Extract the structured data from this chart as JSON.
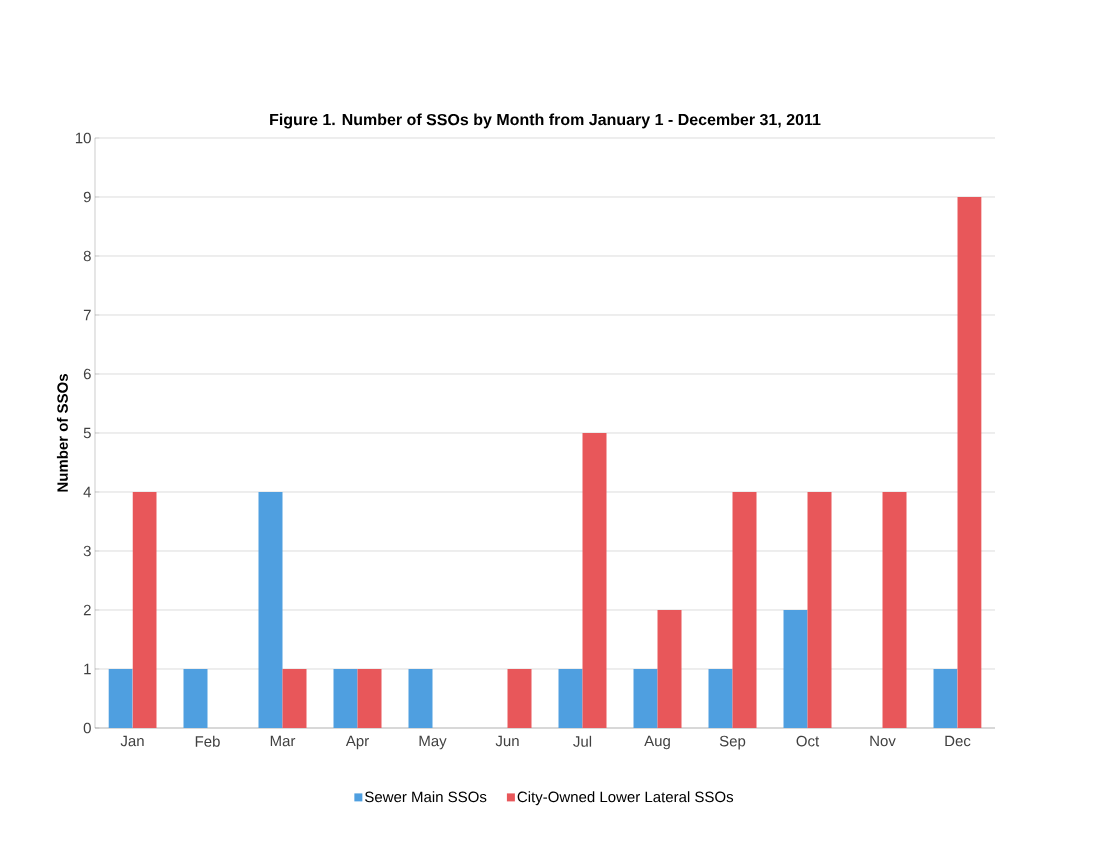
{
  "chart_data": {
    "type": "bar",
    "title": "Figure 1. Number of SSOs by Month from January 1 - December 31, 2011",
    "ylabel": "Number of SSOs",
    "categories": [
      "Jan",
      "Feb",
      "Mar",
      "Apr",
      "May",
      "Jun",
      "Jul",
      "Aug",
      "Sep",
      "Oct",
      "Nov",
      "Dec"
    ],
    "series": [
      {
        "name": "Sewer Main SSOs",
        "color": "#4f9fe0",
        "values": [
          1,
          1,
          4,
          1,
          1,
          0,
          1,
          1,
          1,
          2,
          0,
          1
        ]
      },
      {
        "name": "City-Owned Lower Lateral SSOs",
        "color": "#e8575a",
        "values": [
          4,
          0,
          1,
          1,
          0,
          1,
          5,
          2,
          4,
          4,
          4,
          9
        ]
      }
    ],
    "ylim": [
      0,
      10
    ],
    "yticks": [
      0,
      1,
      2,
      3,
      4,
      5,
      6,
      7,
      8,
      9,
      10
    ],
    "grid": "y",
    "legend": "bottom"
  }
}
